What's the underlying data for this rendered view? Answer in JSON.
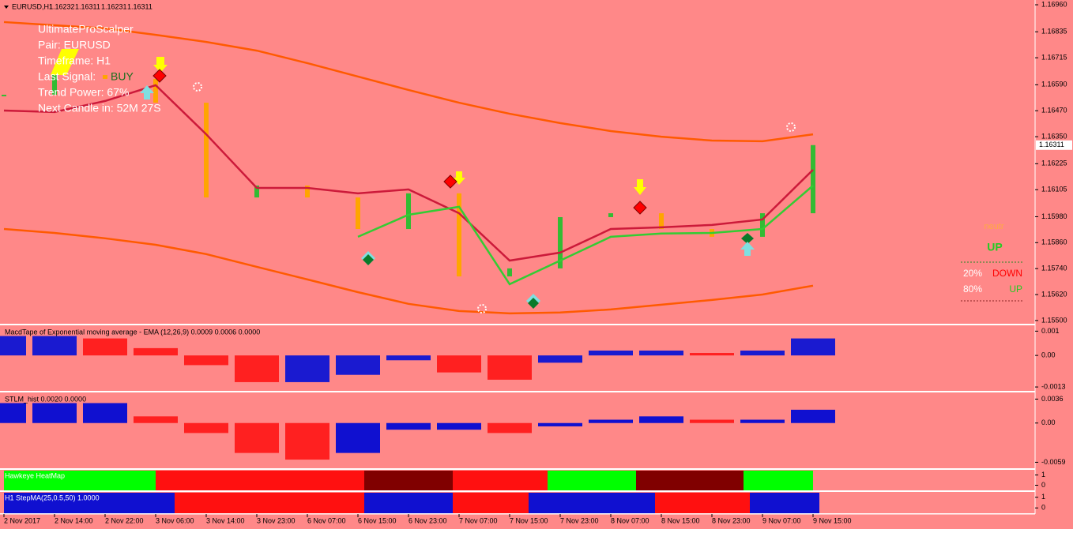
{
  "header": {
    "symbol": "EURUSD,H1",
    "ohlc": [
      1.16232,
      1.16311,
      1.16231,
      1.16311
    ]
  },
  "info_panel": {
    "title": "UltimateProScalper",
    "pair": "Pair: EURUSD",
    "timeframe": "Timeframe: H1",
    "last_signal_label": "Last Signal:",
    "last_signal": "BUY",
    "trend_power": "Trend Power: 67%",
    "next_candle": "Next Candle in: 52M 27S"
  },
  "side_panel": {
    "state": "neutr",
    "signal": "UP",
    "rows": [
      {
        "pct": "20%",
        "label": "DOWN"
      },
      {
        "pct": "80%",
        "label": "UP"
      }
    ]
  },
  "chart_data": {
    "type": "line",
    "categories": [
      "2 Nov 2017",
      "2 Nov 14:00",
      "2 Nov 22:00",
      "3 Nov 06:00",
      "3 Nov 14:00",
      "3 Nov 23:00",
      "6 Nov 07:00",
      "6 Nov 15:00",
      "6 Nov 23:00",
      "7 Nov 07:00",
      "7 Nov 15:00",
      "7 Nov 23:00",
      "8 Nov 07:00",
      "8 Nov 15:00",
      "8 Nov 23:00",
      "9 Nov 07:00",
      "9 Nov 15:00"
    ],
    "ylim": [
      1.15485,
      1.16982
    ],
    "yticks": [
      {
        "value": 1.1696,
        "label": "1.16960"
      },
      1.16835,
      1.16715,
      {
        "value": 1.1659,
        "label": "1.16590"
      },
      {
        "value": 1.1647,
        "label": "1.16470"
      },
      {
        "value": 1.1635,
        "label": "1.16350"
      },
      1.16225,
      1.16105,
      {
        "value": 1.1598,
        "label": "1.15980"
      },
      {
        "value": 1.1586,
        "label": "1.15860"
      },
      {
        "value": 1.1574,
        "label": "1.15740"
      },
      {
        "value": 1.1562,
        "label": "1.15620"
      },
      {
        "value": 1.155,
        "label": "1.15500"
      }
    ],
    "current_price": 1.16311,
    "closes": [
      1.16544,
      1.16635,
      1.16617,
      1.16507,
      1.16069,
      1.16124,
      1.16069,
      1.15923,
      1.16088,
      1.15704,
      1.15741,
      1.15978,
      1.15996,
      1.15923,
      1.15887,
      1.15996,
      1.16311
    ],
    "up_color": "#33bb33",
    "down_color": "#ffa500",
    "series": [
      {
        "color": "#ff5a00",
        "values": [
          1.1688,
          1.16865,
          1.16851,
          1.16821,
          1.16788,
          1.16748,
          1.1669,
          1.16628,
          1.16566,
          1.16507,
          1.16456,
          1.16413,
          1.16376,
          1.1635,
          1.16332,
          1.16329,
          1.16361
        ]
      },
      {
        "color": "#ff5a00",
        "values": [
          1.15923,
          1.15905,
          1.1588,
          1.1585,
          1.15807,
          1.15748,
          1.1569,
          1.15631,
          1.15577,
          1.15544,
          1.15533,
          1.15537,
          1.15551,
          1.15573,
          1.15595,
          1.1562,
          1.15661
        ]
      },
      {
        "color": "#cc1a3a",
        "values": [
          1.16471,
          1.16464,
          1.16515,
          1.16588,
          1.16361,
          1.16113,
          1.16113,
          1.16088,
          1.16106,
          1.15996,
          1.15777,
          1.15814,
          1.15923,
          1.15931,
          1.15942,
          1.15967,
          1.16197
        ]
      },
      {
        "color": "#33cc33",
        "values": [
          null,
          null,
          null,
          null,
          null,
          null,
          null,
          1.15887,
          1.15989,
          1.16026,
          1.15668,
          1.15777,
          1.15887,
          1.15902,
          1.15905,
          1.15923,
          1.16124
        ]
      }
    ]
  },
  "panels": [
    {
      "type": "bar",
      "title": "MacdTape of Exponential moving average - EMA (12,26,9) 0.0009 0.0006 0.0000",
      "ylim": [
        -0.00146,
        0.00124
      ],
      "yticks": [
        0.001,
        {
          "value": 0,
          "label": "0.00"
        },
        -0.0013
      ],
      "rise_color": "#1a1ad0",
      "fall_color": "#ff2020",
      "values": [
        0.0008,
        0.0008,
        0.0007,
        0.0003,
        -0.0004,
        -0.0011,
        -0.0011,
        -0.0008,
        -0.0002,
        -0.0007,
        -0.001,
        -0.0003,
        0.0002,
        0.0002,
        0.0001,
        0.0002,
        0.0007
      ]
    },
    {
      "type": "bar",
      "title": "STLM_hist 0.0020 0.0000",
      "ylim": [
        -0.0068,
        0.0046
      ],
      "yticks": [
        0.0036,
        {
          "value": 0,
          "label": "0.00"
        },
        -0.0059
      ],
      "rise_color": "#1010d0",
      "fall_color": "#ff2020",
      "values": [
        0.003,
        0.003,
        0.003,
        0.001,
        -0.0015,
        -0.0045,
        -0.0055,
        -0.0045,
        -0.001,
        -0.001,
        -0.0015,
        -0.0005,
        0.0005,
        0.001,
        0.0005,
        0.0005,
        0.002
      ]
    },
    {
      "type": "heatmap",
      "title": "Hawkeye HeatMap",
      "ylim": [
        -0.5,
        1.5
      ],
      "yticks": [
        1,
        0
      ],
      "segments": [
        {
          "color": "#00ff00",
          "bars": 24
        },
        {
          "color": "#ff1010",
          "bars": 33
        },
        {
          "color": "#800000",
          "bars": 14
        },
        {
          "color": "#ff1010",
          "bars": 15
        },
        {
          "color": "#00ff00",
          "bars": 14
        },
        {
          "color": "#800000",
          "bars": 17
        },
        {
          "color": "#00ff00",
          "bars": 11
        }
      ]
    },
    {
      "type": "heatmap",
      "title": "H1 StepMA(25,0.5,50) 1.0000",
      "ylim": [
        -0.5,
        1.5
      ],
      "yticks": [
        1,
        0
      ],
      "segments": [
        {
          "color": "#1010d0",
          "bars": 27
        },
        {
          "color": "#ff1010",
          "bars": 30
        },
        {
          "color": "#1010d0",
          "bars": 14
        },
        {
          "color": "#ff1010",
          "bars": 12
        },
        {
          "color": "#1010d0",
          "bars": 20
        },
        {
          "color": "#ff1010",
          "bars": 15
        },
        {
          "color": "#1010d0",
          "bars": 11
        }
      ]
    }
  ]
}
